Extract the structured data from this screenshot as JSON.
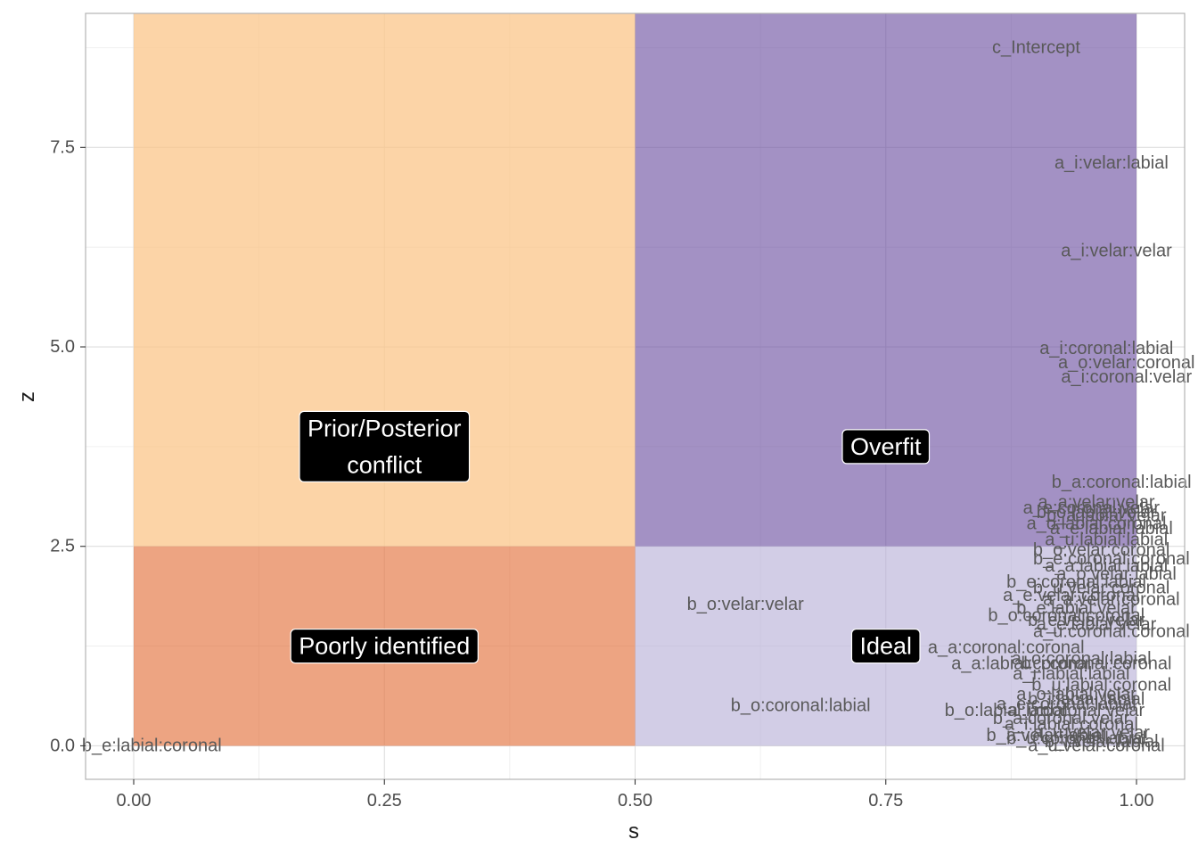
{
  "chart_data": {
    "type": "scatter",
    "title": "",
    "xlabel": "s",
    "ylabel": "z",
    "xlim": [
      -0.048,
      1.048
    ],
    "ylim": [
      -0.42,
      9.18
    ],
    "x_ticks": [
      0,
      0.25,
      0.5,
      0.75,
      1
    ],
    "x_tick_labels": [
      "0.00",
      "0.25",
      "0.50",
      "0.75",
      "1.00"
    ],
    "y_ticks": [
      0,
      2.5,
      5,
      7.5
    ],
    "y_tick_labels": [
      "0.0",
      "2.5",
      "5.0",
      "7.5"
    ],
    "grid": true,
    "regions": [
      {
        "name": "Prior/Posterior conflict",
        "lines": [
          "Prior/Posterior",
          "conflict"
        ],
        "x": [
          0,
          0.5
        ],
        "y": [
          2.5,
          9.18
        ],
        "color": "#fbc58a",
        "opacity": 0.75,
        "label_at": [
          0.25,
          3.75
        ]
      },
      {
        "name": "Poorly identified",
        "lines": [
          "Poorly identified"
        ],
        "x": [
          0,
          0.5
        ],
        "y": [
          0,
          2.5
        ],
        "color": "#e4733f",
        "opacity": 0.65,
        "label_at": [
          0.25,
          1.25
        ]
      },
      {
        "name": "Overfit",
        "lines": [
          "Overfit"
        ],
        "x": [
          0.5,
          1
        ],
        "y": [
          2.5,
          9.18
        ],
        "color": "#6a4ea0",
        "opacity": 0.62,
        "label_at": [
          0.75,
          3.75
        ]
      },
      {
        "name": "Ideal",
        "lines": [
          "Ideal"
        ],
        "x": [
          0.5,
          1
        ],
        "y": [
          0,
          2.5
        ],
        "color": "#b7aed6",
        "opacity": 0.62,
        "label_at": [
          0.75,
          1.25
        ]
      }
    ],
    "points": [
      {
        "label": "c_Intercept",
        "s": 0.9,
        "z": 8.75
      },
      {
        "label": "a_i:velar:labial",
        "s": 0.975,
        "z": 7.3
      },
      {
        "label": "a_i:velar:velar",
        "s": 0.98,
        "z": 6.2
      },
      {
        "label": "a_i:coronal:labial",
        "s": 0.97,
        "z": 4.98
      },
      {
        "label": "a_o:velar:coronal",
        "s": 0.99,
        "z": 4.8
      },
      {
        "label": "a_i:coronal:velar",
        "s": 0.99,
        "z": 4.62
      },
      {
        "label": "b_a:coronal:labial",
        "s": 0.985,
        "z": 3.3
      },
      {
        "label": "b_e:labial:coronal",
        "s": 0.018,
        "z": 0.0
      },
      {
        "label": "b_o:velar:velar",
        "s": 0.61,
        "z": 1.77
      },
      {
        "label": "b_o:coronal:labial",
        "s": 0.665,
        "z": 0.5
      },
      {
        "label": "b_o:labial:labial",
        "s": 0.87,
        "z": 0.44
      },
      {
        "label": "a_u:labial:labial",
        "s": 0.97,
        "z": 2.58
      },
      {
        "label": "a_u:coronal:coronal",
        "s": 0.975,
        "z": 1.43
      },
      {
        "label": "a_a:coronal:coronal",
        "s": 0.87,
        "z": 1.23
      },
      {
        "label": "a_a:labial:coronal",
        "s": 0.885,
        "z": 1.03
      },
      {
        "label": "a_u:velar:coronal",
        "s": 0.96,
        "z": 0.0
      },
      {
        "label": "b_e:coronal:labial",
        "s": 0.94,
        "z": 2.05
      },
      {
        "label": "a_e:velar:coronal",
        "s": 0.935,
        "z": 1.88
      },
      {
        "label": "b_e:velar:velar",
        "s": 0.95,
        "z": 1.57
      },
      {
        "label": "b_e:labial:velar",
        "s": 0.94,
        "z": 1.72
      },
      {
        "label": "b_o:coronal:coronal",
        "s": 0.93,
        "z": 1.63
      },
      {
        "label": "a_o:labial:coronal",
        "s": 0.96,
        "z": 2.78
      },
      {
        "label": "b_o:labial:velar",
        "s": 0.96,
        "z": 2.92
      },
      {
        "label": "a_e:coronal:velar",
        "s": 0.955,
        "z": 2.98
      },
      {
        "label": "a_a:velar:velar",
        "s": 0.96,
        "z": 3.05
      },
      {
        "label": "b_a:labial:velar",
        "s": 0.97,
        "z": 2.88
      },
      {
        "label": "a_e:labial:labial",
        "s": 0.975,
        "z": 2.72
      },
      {
        "label": "b_o:velar:coronal",
        "s": 0.965,
        "z": 2.45
      },
      {
        "label": "b_e:coronal:coronal",
        "s": 0.975,
        "z": 2.34
      },
      {
        "label": "a_a:labial:labial",
        "s": 0.97,
        "z": 2.25
      },
      {
        "label": "a_o:velar:labial",
        "s": 0.98,
        "z": 2.15
      },
      {
        "label": "b_u:velar:coronal",
        "s": 0.965,
        "z": 1.98
      },
      {
        "label": "a_a:velar:coronal",
        "s": 0.975,
        "z": 1.83
      },
      {
        "label": "a_e:labial:velar",
        "s": 0.96,
        "z": 1.52
      },
      {
        "label": "b_i:coronal:coronal",
        "s": 0.96,
        "z": 1.03
      },
      {
        "label": "a_o:coronal:labial",
        "s": 0.945,
        "z": 1.09
      },
      {
        "label": "a_i:labial:labial",
        "s": 0.935,
        "z": 0.9
      },
      {
        "label": "b_u:labial:coronal",
        "s": 0.965,
        "z": 0.76
      },
      {
        "label": "a_o:labial:velar",
        "s": 0.94,
        "z": 0.64
      },
      {
        "label": "a_e:coronal:labial",
        "s": 0.93,
        "z": 0.52
      },
      {
        "label": "b_i:labial:labial",
        "s": 0.95,
        "z": 0.58
      },
      {
        "label": "a_u:coronal:velar",
        "s": 0.94,
        "z": 0.44
      },
      {
        "label": "b_a:coronal:velar",
        "s": 0.925,
        "z": 0.34
      },
      {
        "label": "a_i:labial:coronal",
        "s": 0.935,
        "z": 0.27
      },
      {
        "label": "b_a:velar:labial",
        "s": 0.91,
        "z": 0.13
      },
      {
        "label": "b_u:coronal:labial",
        "s": 0.94,
        "z": 0.09
      },
      {
        "label": "a_u:velar:velar",
        "s": 0.955,
        "z": 0.16
      },
      {
        "label": "b_i:velar:labial",
        "s": 0.965,
        "z": 0.05
      }
    ]
  }
}
